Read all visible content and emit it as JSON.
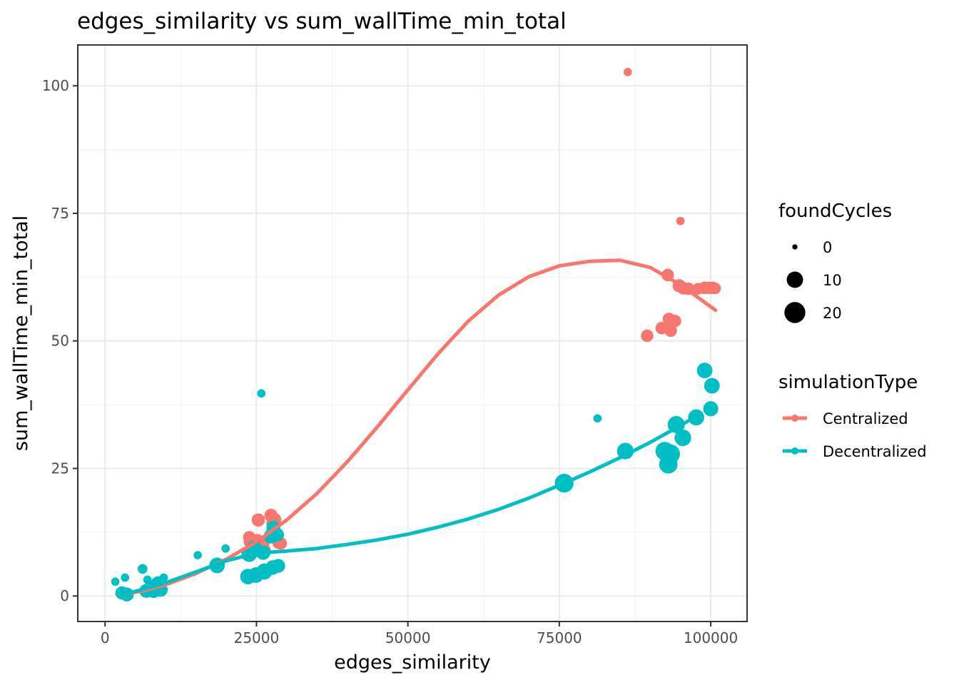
{
  "chart_data": {
    "type": "scatter",
    "title": "edges_similarity  vs  sum_wallTime_min_total",
    "xlabel": "edges_similarity",
    "ylabel": "sum_wallTime_min_total",
    "xlim": [
      -4500,
      106000
    ],
    "ylim": [
      -5,
      108
    ],
    "x_ticks": [
      0,
      25000,
      50000,
      75000,
      100000
    ],
    "x_tick_labels": [
      "0",
      "25000",
      "50000",
      "75000",
      "100000"
    ],
    "y_ticks": [
      0,
      25,
      50,
      75,
      100
    ],
    "y_tick_labels": [
      "0",
      "25",
      "50",
      "75",
      "100"
    ],
    "grid": true,
    "legend_position": "right",
    "size_legend": {
      "title": "foundCycles",
      "entries": [
        {
          "label": "0",
          "value": 0
        },
        {
          "label": "10",
          "value": 10
        },
        {
          "label": "20",
          "value": 20
        }
      ]
    },
    "color_legend": {
      "title": "simulationType",
      "entries": [
        {
          "label": "Centralized",
          "color": "#F8766D"
        },
        {
          "label": "Decentralized",
          "color": "#00BFC4"
        }
      ]
    },
    "series": [
      {
        "name": "Centralized",
        "color": "#F8766D",
        "points": [
          [
            86300,
            102.7,
            1
          ],
          [
            95000,
            73.5,
            1
          ],
          [
            92900,
            62.9,
            5
          ],
          [
            94800,
            60.8,
            6
          ],
          [
            95500,
            60.3,
            5
          ],
          [
            96300,
            60.2,
            5
          ],
          [
            97900,
            60.2,
            4
          ],
          [
            99000,
            60.4,
            5
          ],
          [
            99700,
            60.4,
            5
          ],
          [
            100300,
            60.4,
            5
          ],
          [
            100700,
            60.3,
            4
          ],
          [
            93100,
            54.3,
            5
          ],
          [
            94100,
            53.9,
            5
          ],
          [
            91900,
            52.5,
            5
          ],
          [
            93400,
            52.0,
            5
          ],
          [
            89500,
            51.0,
            5
          ],
          [
            25300,
            14.9,
            6
          ],
          [
            27400,
            15.8,
            6
          ],
          [
            28000,
            15.0,
            6
          ],
          [
            23800,
            11.5,
            5
          ],
          [
            25200,
            10.9,
            5
          ],
          [
            26100,
            10.1,
            5
          ],
          [
            27600,
            14.2,
            4
          ],
          [
            26400,
            8.8,
            5
          ],
          [
            28700,
            10.4,
            5
          ],
          [
            29000,
            10.3,
            5
          ],
          [
            24000,
            10.6,
            6
          ],
          [
            24600,
            10.9,
            5
          ]
        ],
        "trend": [
          [
            2000,
            0.3
          ],
          [
            6000,
            0.9
          ],
          [
            10000,
            2.2
          ],
          [
            15000,
            4.4
          ],
          [
            20000,
            7.2
          ],
          [
            25000,
            10.6
          ],
          [
            30000,
            14.9
          ],
          [
            35000,
            20.1
          ],
          [
            40000,
            26.3
          ],
          [
            45000,
            33.2
          ],
          [
            50000,
            40.4
          ],
          [
            55000,
            47.5
          ],
          [
            60000,
            53.9
          ],
          [
            65000,
            59.0
          ],
          [
            70000,
            62.6
          ],
          [
            75000,
            64.7
          ],
          [
            80000,
            65.6
          ],
          [
            85000,
            65.8
          ],
          [
            90000,
            64.4
          ],
          [
            95000,
            61.0
          ],
          [
            100800,
            56.0
          ]
        ]
      },
      {
        "name": "Decentralized",
        "color": "#00BFC4",
        "points": [
          [
            25800,
            39.7,
            1
          ],
          [
            81300,
            34.8,
            1
          ],
          [
            15300,
            8.0,
            1
          ],
          [
            19900,
            9.3,
            1
          ],
          [
            1700,
            2.8,
            1
          ],
          [
            3300,
            3.6,
            1
          ],
          [
            6200,
            5.3,
            2
          ],
          [
            7000,
            3.2,
            1
          ],
          [
            9700,
            3.6,
            1
          ],
          [
            99000,
            44.2,
            10
          ],
          [
            100200,
            41.2,
            10
          ],
          [
            100000,
            36.7,
            9
          ],
          [
            97600,
            35.0,
            11
          ],
          [
            94300,
            33.6,
            13
          ],
          [
            95400,
            31.0,
            12
          ],
          [
            92400,
            28.4,
            16
          ],
          [
            93300,
            27.8,
            19
          ],
          [
            93000,
            25.8,
            16
          ],
          [
            85900,
            28.4,
            12
          ],
          [
            75800,
            22.1,
            17
          ],
          [
            18500,
            6.0,
            10
          ],
          [
            23800,
            8.2,
            10
          ],
          [
            24600,
            9.2,
            12
          ],
          [
            26100,
            8.5,
            8
          ],
          [
            27400,
            11.7,
            8
          ],
          [
            27800,
            13.4,
            7
          ],
          [
            28400,
            12.0,
            7
          ],
          [
            23600,
            3.8,
            10
          ],
          [
            24900,
            4.1,
            10
          ],
          [
            26300,
            4.8,
            11
          ],
          [
            27700,
            5.6,
            8
          ],
          [
            28600,
            5.9,
            7
          ],
          [
            2800,
            0.6,
            6
          ],
          [
            3600,
            0.3,
            7
          ],
          [
            6800,
            1.0,
            7
          ],
          [
            7600,
            1.5,
            8
          ],
          [
            8800,
            2.4,
            9
          ],
          [
            9200,
            1.2,
            7
          ],
          [
            8000,
            0.9,
            6
          ]
        ],
        "trend": [
          [
            2000,
            0.3
          ],
          [
            5000,
            0.9
          ],
          [
            10000,
            2.6
          ],
          [
            15000,
            4.7
          ],
          [
            20000,
            6.9
          ],
          [
            25000,
            8.4
          ],
          [
            30000,
            8.8
          ],
          [
            35000,
            9.3
          ],
          [
            40000,
            10.1
          ],
          [
            45000,
            11.0
          ],
          [
            50000,
            12.1
          ],
          [
            55000,
            13.5
          ],
          [
            60000,
            15.1
          ],
          [
            65000,
            17.0
          ],
          [
            70000,
            19.2
          ],
          [
            75000,
            21.7
          ],
          [
            80000,
            24.3
          ],
          [
            85000,
            27.1
          ],
          [
            90000,
            30.1
          ],
          [
            95000,
            33.4
          ],
          [
            97000,
            34.8
          ]
        ]
      }
    ]
  }
}
